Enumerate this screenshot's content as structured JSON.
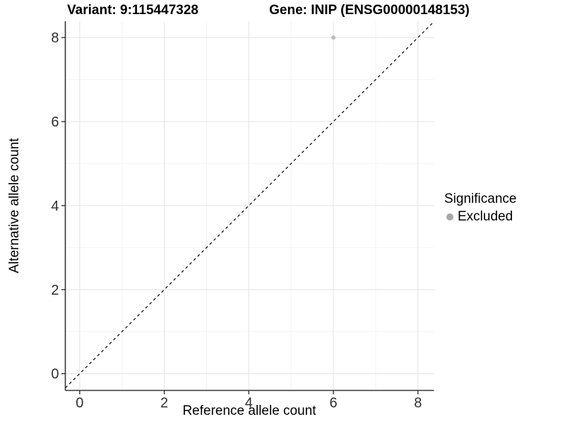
{
  "titles": {
    "left": "Variant: 9:115447328",
    "right": "Gene: INIP (ENSG00000148153)"
  },
  "axes": {
    "x_title": "Reference allele count",
    "y_title": "Alternative allele count"
  },
  "legend": {
    "title": "Significance",
    "items": [
      {
        "label": "Excluded",
        "color": "#a8a8a8"
      }
    ],
    "position": "right"
  },
  "chart_data": {
    "type": "scatter",
    "title": "Variant: 9:115447328  /  Gene: INIP (ENSG00000148153)",
    "xlabel": "Reference allele count",
    "ylabel": "Alternative allele count",
    "xlim": [
      -0.34,
      8.38
    ],
    "ylim": [
      -0.4,
      8.39
    ],
    "x_ticks": [
      0,
      2,
      4,
      6,
      8
    ],
    "y_ticks": [
      0,
      2,
      4,
      6,
      8
    ],
    "x_minor_ticks": [
      1,
      3,
      5,
      7
    ],
    "y_minor_ticks": [
      1,
      3,
      5,
      7
    ],
    "grid": "major+minor",
    "legend_position": "right",
    "series": [
      {
        "name": "Excluded",
        "points": [
          {
            "x": 6,
            "y": 8
          }
        ],
        "color": "#bdbdbd"
      }
    ],
    "reference_line": {
      "type": "identity",
      "intercept": 0,
      "slope": 1,
      "style": "dashed",
      "color": "#000000"
    }
  },
  "style_colors": {
    "grid_major": "#e7e7e7",
    "grid_minor": "#f4f4f4",
    "axis_line": "#333333",
    "tick_label": "#303030",
    "point": "#bdbdbd",
    "legend_dot": "#a8a8a8"
  }
}
